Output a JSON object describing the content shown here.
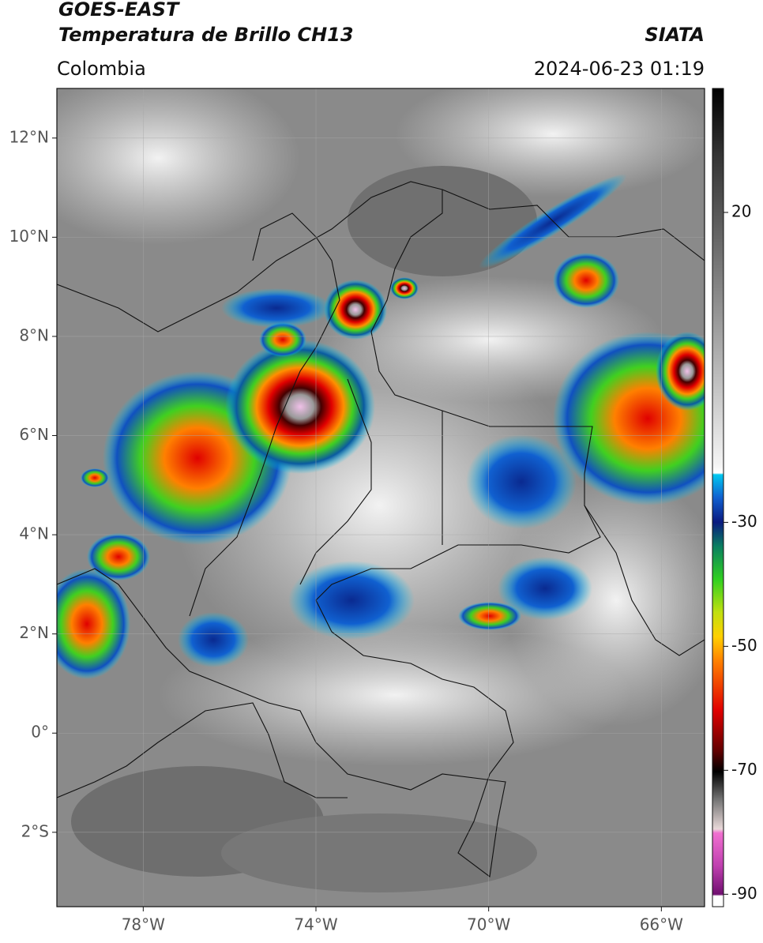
{
  "header": {
    "title": "GOES-EAST",
    "subtitle": "Temperatura de Brillo CH13",
    "source": "SIATA",
    "region": "Colombia",
    "datetime": "2024-06-23 01:19"
  },
  "map": {
    "lonlim": [
      -80,
      -65
    ],
    "latlim": [
      -3.5,
      13
    ],
    "lonticks": [
      {
        "value": -78,
        "label": "78°W"
      },
      {
        "value": -74,
        "label": "74°W"
      },
      {
        "value": -70,
        "label": "70°W"
      },
      {
        "value": -66,
        "label": "66°W"
      }
    ],
    "latticks": [
      {
        "value": 12,
        "label": "12°N"
      },
      {
        "value": 10,
        "label": "10°N"
      },
      {
        "value": 8,
        "label": "8°N"
      },
      {
        "value": 6,
        "label": "6°N"
      },
      {
        "value": 4,
        "label": "4°N"
      },
      {
        "value": 2,
        "label": "2°N"
      },
      {
        "value": 0,
        "label": "0°"
      },
      {
        "value": -2,
        "label": "2°S"
      }
    ]
  },
  "colorbar": {
    "lim": [
      -92,
      40
    ],
    "ticks": [
      20,
      -30,
      -50,
      -70,
      -90
    ]
  }
}
